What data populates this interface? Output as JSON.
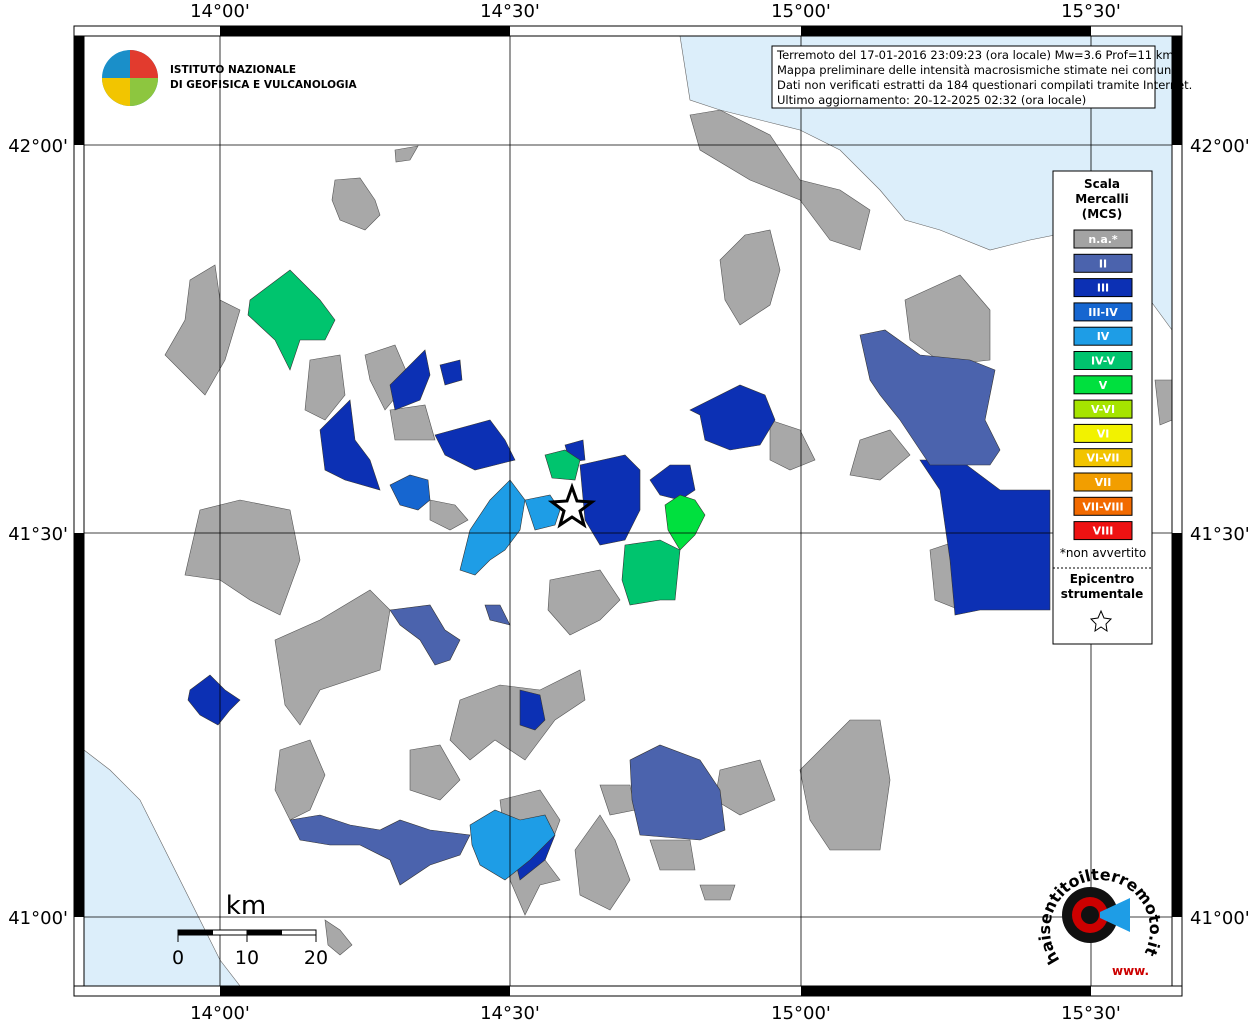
{
  "axes": {
    "longitude_labels": [
      "14°00'",
      "14°30'",
      "15°00'",
      "15°30'"
    ],
    "latitude_labels": [
      "42°00'",
      "41°30'",
      "41°00'"
    ]
  },
  "logo": {
    "line1": "ISTITUTO NAZIONALE",
    "line2": "DI GEOFISICA E VULCANOLOGIA"
  },
  "info": [
    "Terremoto del 17-01-2016 23:09:23 (ora locale) Mw=3.6 Prof=11 km",
    "Mappa preliminare delle intensità macrosismiche stimate nei comuni",
    "Dati non verificati estratti da 184 questionari compilati tramite Internet.",
    "Ultimo aggiornamento: 20-12-2025 02:32 (ora locale)"
  ],
  "legend": {
    "title": [
      "Scala",
      "Mercalli",
      "(MCS)"
    ],
    "entries": [
      {
        "label": "n.a.*",
        "color": "#a3a3a3"
      },
      {
        "label": "II",
        "color": "#4b63ad"
      },
      {
        "label": "III",
        "color": "#0c30b4"
      },
      {
        "label": "III-IV",
        "color": "#1666d0"
      },
      {
        "label": "IV",
        "color": "#1e9de6"
      },
      {
        "label": "IV-V",
        "color": "#00c46e"
      },
      {
        "label": "V",
        "color": "#00e03e"
      },
      {
        "label": "V-VI",
        "color": "#a6e400"
      },
      {
        "label": "VI",
        "color": "#f2f200"
      },
      {
        "label": "VI-VII",
        "color": "#f2c400"
      },
      {
        "label": "VII",
        "color": "#f29e00"
      },
      {
        "label": "VII-VIII",
        "color": "#f26a00"
      },
      {
        "label": "VIII",
        "color": "#ee1212"
      }
    ],
    "note": "*non avvertito",
    "epicenter": [
      "Epicentro",
      "strumentale"
    ]
  },
  "scale_bar": {
    "unit": "km",
    "ticks": [
      0,
      10,
      20
    ]
  },
  "web_logo": {
    "text": "haisentitoilterremoto.it",
    "prefix": "www."
  }
}
